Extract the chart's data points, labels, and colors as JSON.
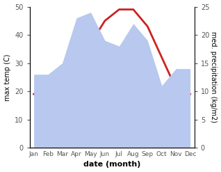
{
  "months": [
    "Jan",
    "Feb",
    "Mar",
    "Apr",
    "May",
    "Jun",
    "Jul",
    "Aug",
    "Sep",
    "Oct",
    "Nov",
    "Dec"
  ],
  "month_x": [
    0,
    1,
    2,
    3,
    4,
    5,
    6,
    7,
    8,
    9,
    10,
    11
  ],
  "temperature": [
    19,
    20,
    24,
    30,
    37,
    45,
    49,
    49,
    43,
    32,
    21,
    19
  ],
  "precipitation": [
    13,
    13,
    15,
    23,
    24,
    19,
    18,
    22,
    19,
    11,
    14,
    14
  ],
  "temp_color": "#cc2222",
  "precip_color": "#b8c8ee",
  "left_ylim": [
    0,
    50
  ],
  "right_ylim": [
    0,
    25
  ],
  "left_yticks": [
    0,
    10,
    20,
    30,
    40,
    50
  ],
  "right_yticks": [
    0,
    5,
    10,
    15,
    20,
    25
  ],
  "left_ylabel": "max temp (C)",
  "right_ylabel": "med. precipitation (kg/m2)",
  "xlabel": "date (month)",
  "temp_linewidth": 2.0,
  "background_color": "#ffffff",
  "tick_color": "#555555",
  "label_fontsize": 7,
  "xlabel_fontsize": 8,
  "xtick_fontsize": 6.5,
  "ytick_fontsize": 7
}
